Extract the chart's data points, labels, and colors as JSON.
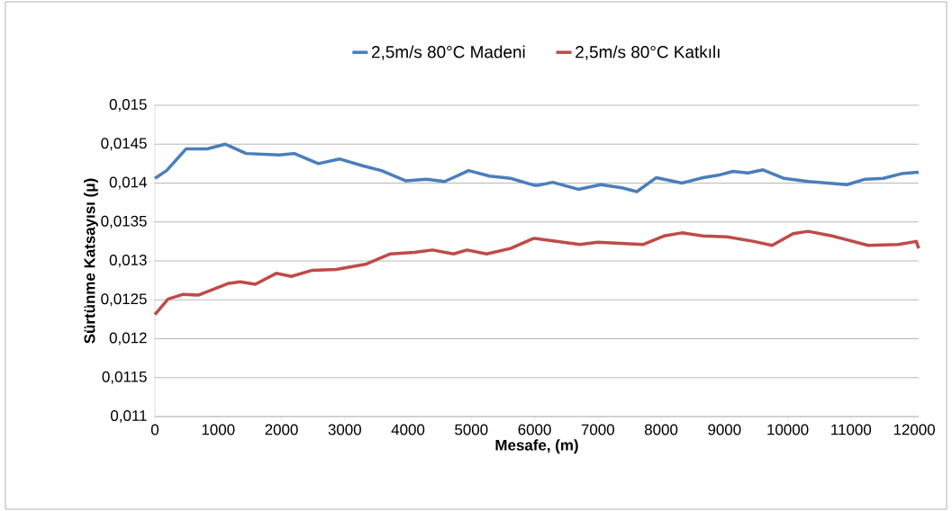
{
  "chart_data": {
    "type": "line",
    "xlabel": "Mesafe, (m)",
    "ylabel": "Sürtünme Katsayısı (μ)",
    "xlim": [
      0,
      12070
    ],
    "ylim": [
      0.011,
      0.015
    ],
    "xticks": [
      0,
      1000,
      2000,
      3000,
      4000,
      5000,
      6000,
      7000,
      8000,
      9000,
      10000,
      11000,
      12000
    ],
    "yticks": [
      {
        "value": 0.011,
        "label": "0,011"
      },
      {
        "value": 0.0115,
        "label": "0,0115"
      },
      {
        "value": 0.012,
        "label": "0,012"
      },
      {
        "value": 0.0125,
        "label": "0,0125"
      },
      {
        "value": 0.013,
        "label": "0,013"
      },
      {
        "value": 0.0135,
        "label": "0,0135"
      },
      {
        "value": 0.014,
        "label": "0,014"
      },
      {
        "value": 0.0145,
        "label": "0,0145"
      },
      {
        "value": 0.015,
        "label": "0,015"
      }
    ],
    "grid": "y",
    "legend": "top",
    "marker": "none",
    "line_style": "solid",
    "series": [
      {
        "name": "2,5m/s 80°C Madeni",
        "color": "#4a7ebb",
        "x": [
          0,
          185,
          494,
          826,
          1111,
          1443,
          1966,
          2203,
          2583,
          2915,
          3295,
          3580,
          3960,
          4292,
          4577,
          4957,
          5290,
          5622,
          6002,
          6049,
          6287,
          6690,
          7047,
          7379,
          7616,
          7925,
          8329,
          8661,
          8898,
          9136,
          9373,
          9611,
          9943,
          10323,
          10940,
          11225,
          11510,
          11795,
          12070
        ],
        "values": [
          0.01406,
          0.01416,
          0.01444,
          0.01444,
          0.0145,
          0.01438,
          0.01436,
          0.01438,
          0.01425,
          0.01431,
          0.01422,
          0.01416,
          0.01403,
          0.01405,
          0.01402,
          0.01416,
          0.01409,
          0.01406,
          0.01397,
          0.01397,
          0.01401,
          0.01392,
          0.01398,
          0.01394,
          0.01389,
          0.01407,
          0.014,
          0.01407,
          0.0141,
          0.01415,
          0.01413,
          0.01417,
          0.01406,
          0.01402,
          0.01398,
          0.01405,
          0.01406,
          0.01412,
          0.01414
        ]
      },
      {
        "name": "2,5m/s 80°C Katkılı",
        "color": "#be4b48",
        "x": [
          0,
          209,
          446,
          684,
          1158,
          1348,
          1586,
          1918,
          2155,
          2488,
          2867,
          3343,
          3722,
          4103,
          4387,
          4719,
          4933,
          5242,
          5622,
          5954,
          6002,
          6714,
          6999,
          7711,
          8044,
          8329,
          8661,
          9041,
          9468,
          9753,
          10085,
          10323,
          10702,
          10940,
          11272,
          11747,
          12032,
          12070
        ],
        "values": [
          0.01231,
          0.01251,
          0.01257,
          0.01256,
          0.01271,
          0.01273,
          0.0127,
          0.01284,
          0.0128,
          0.01288,
          0.01289,
          0.01296,
          0.01309,
          0.01311,
          0.01314,
          0.01309,
          0.01314,
          0.01309,
          0.01316,
          0.01328,
          0.01329,
          0.01321,
          0.01324,
          0.01321,
          0.01332,
          0.01336,
          0.01332,
          0.01331,
          0.01325,
          0.0132,
          0.01335,
          0.01338,
          0.01332,
          0.01327,
          0.0132,
          0.01321,
          0.01325,
          0.01316
        ]
      }
    ]
  }
}
